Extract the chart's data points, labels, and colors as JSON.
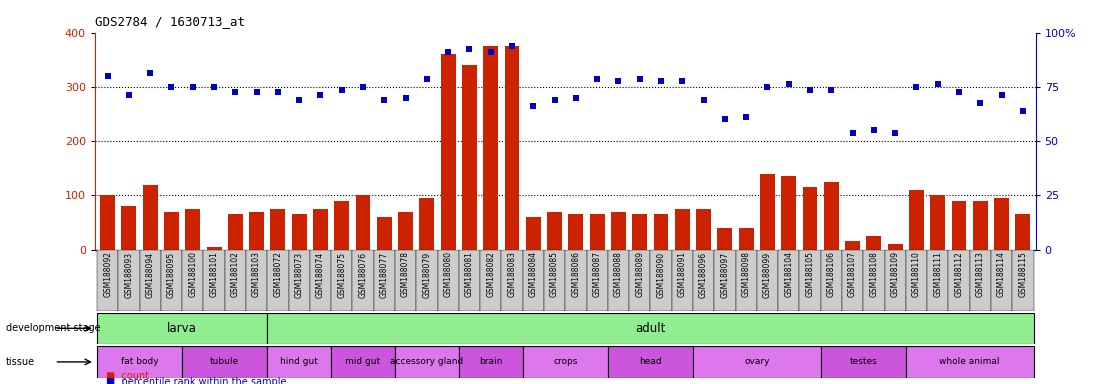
{
  "title": "GDS2784 / 1630713_at",
  "samples": [
    "GSM188092",
    "GSM188093",
    "GSM188094",
    "GSM188095",
    "GSM188100",
    "GSM188101",
    "GSM188102",
    "GSM188103",
    "GSM188072",
    "GSM188073",
    "GSM188074",
    "GSM188075",
    "GSM188076",
    "GSM188077",
    "GSM188078",
    "GSM188079",
    "GSM188080",
    "GSM188081",
    "GSM188082",
    "GSM188083",
    "GSM188084",
    "GSM188085",
    "GSM188086",
    "GSM188087",
    "GSM188088",
    "GSM188089",
    "GSM188090",
    "GSM188091",
    "GSM188096",
    "GSM188097",
    "GSM188098",
    "GSM188099",
    "GSM188104",
    "GSM188105",
    "GSM188106",
    "GSM188107",
    "GSM188108",
    "GSM188109",
    "GSM188110",
    "GSM188111",
    "GSM188112",
    "GSM188113",
    "GSM188114",
    "GSM188115"
  ],
  "counts": [
    100,
    80,
    120,
    70,
    75,
    5,
    65,
    70,
    75,
    65,
    75,
    90,
    100,
    60,
    70,
    95,
    360,
    340,
    375,
    375,
    60,
    70,
    65,
    65,
    70,
    65,
    65,
    75,
    75,
    40,
    40,
    140,
    135,
    115,
    125,
    15,
    25,
    10,
    110,
    100,
    90,
    90,
    95,
    65
  ],
  "percentiles": [
    320,
    285,
    325,
    300,
    300,
    300,
    290,
    290,
    290,
    275,
    285,
    295,
    300,
    275,
    280,
    315,
    365,
    370,
    365,
    375,
    265,
    275,
    280,
    315,
    310,
    315,
    310,
    310,
    275,
    240,
    245,
    300,
    305,
    295,
    295,
    215,
    220,
    215,
    300,
    305,
    290,
    270,
    285,
    255
  ],
  "bar_color": "#cc2200",
  "scatter_color": "#0000cc",
  "tick_bg": "#cccccc",
  "dev_stage_color": "#90ee90",
  "tissue_color1": "#dd77ee",
  "tissue_color2": "#cc55dd",
  "ylim_left": [
    0,
    400
  ],
  "ylim_right": [
    0,
    100
  ],
  "yticks_left": [
    0,
    100,
    200,
    300,
    400
  ],
  "yticks_right": [
    0,
    25,
    50,
    75,
    100
  ],
  "ytick_labels_right": [
    "0",
    "25",
    "50",
    "75",
    "100%"
  ],
  "dev_stages": [
    {
      "label": "larva",
      "start": 0,
      "end": 8
    },
    {
      "label": "adult",
      "start": 8,
      "end": 44
    }
  ],
  "tissues": [
    {
      "label": "fat body",
      "start": 0,
      "end": 4
    },
    {
      "label": "tubule",
      "start": 4,
      "end": 8
    },
    {
      "label": "hind gut",
      "start": 8,
      "end": 11
    },
    {
      "label": "mid gut",
      "start": 11,
      "end": 14
    },
    {
      "label": "accessory gland",
      "start": 14,
      "end": 17
    },
    {
      "label": "brain",
      "start": 17,
      "end": 20
    },
    {
      "label": "crops",
      "start": 20,
      "end": 24
    },
    {
      "label": "head",
      "start": 24,
      "end": 28
    },
    {
      "label": "ovary",
      "start": 28,
      "end": 34
    },
    {
      "label": "testes",
      "start": 34,
      "end": 38
    },
    {
      "label": "whole animal",
      "start": 38,
      "end": 44
    }
  ]
}
